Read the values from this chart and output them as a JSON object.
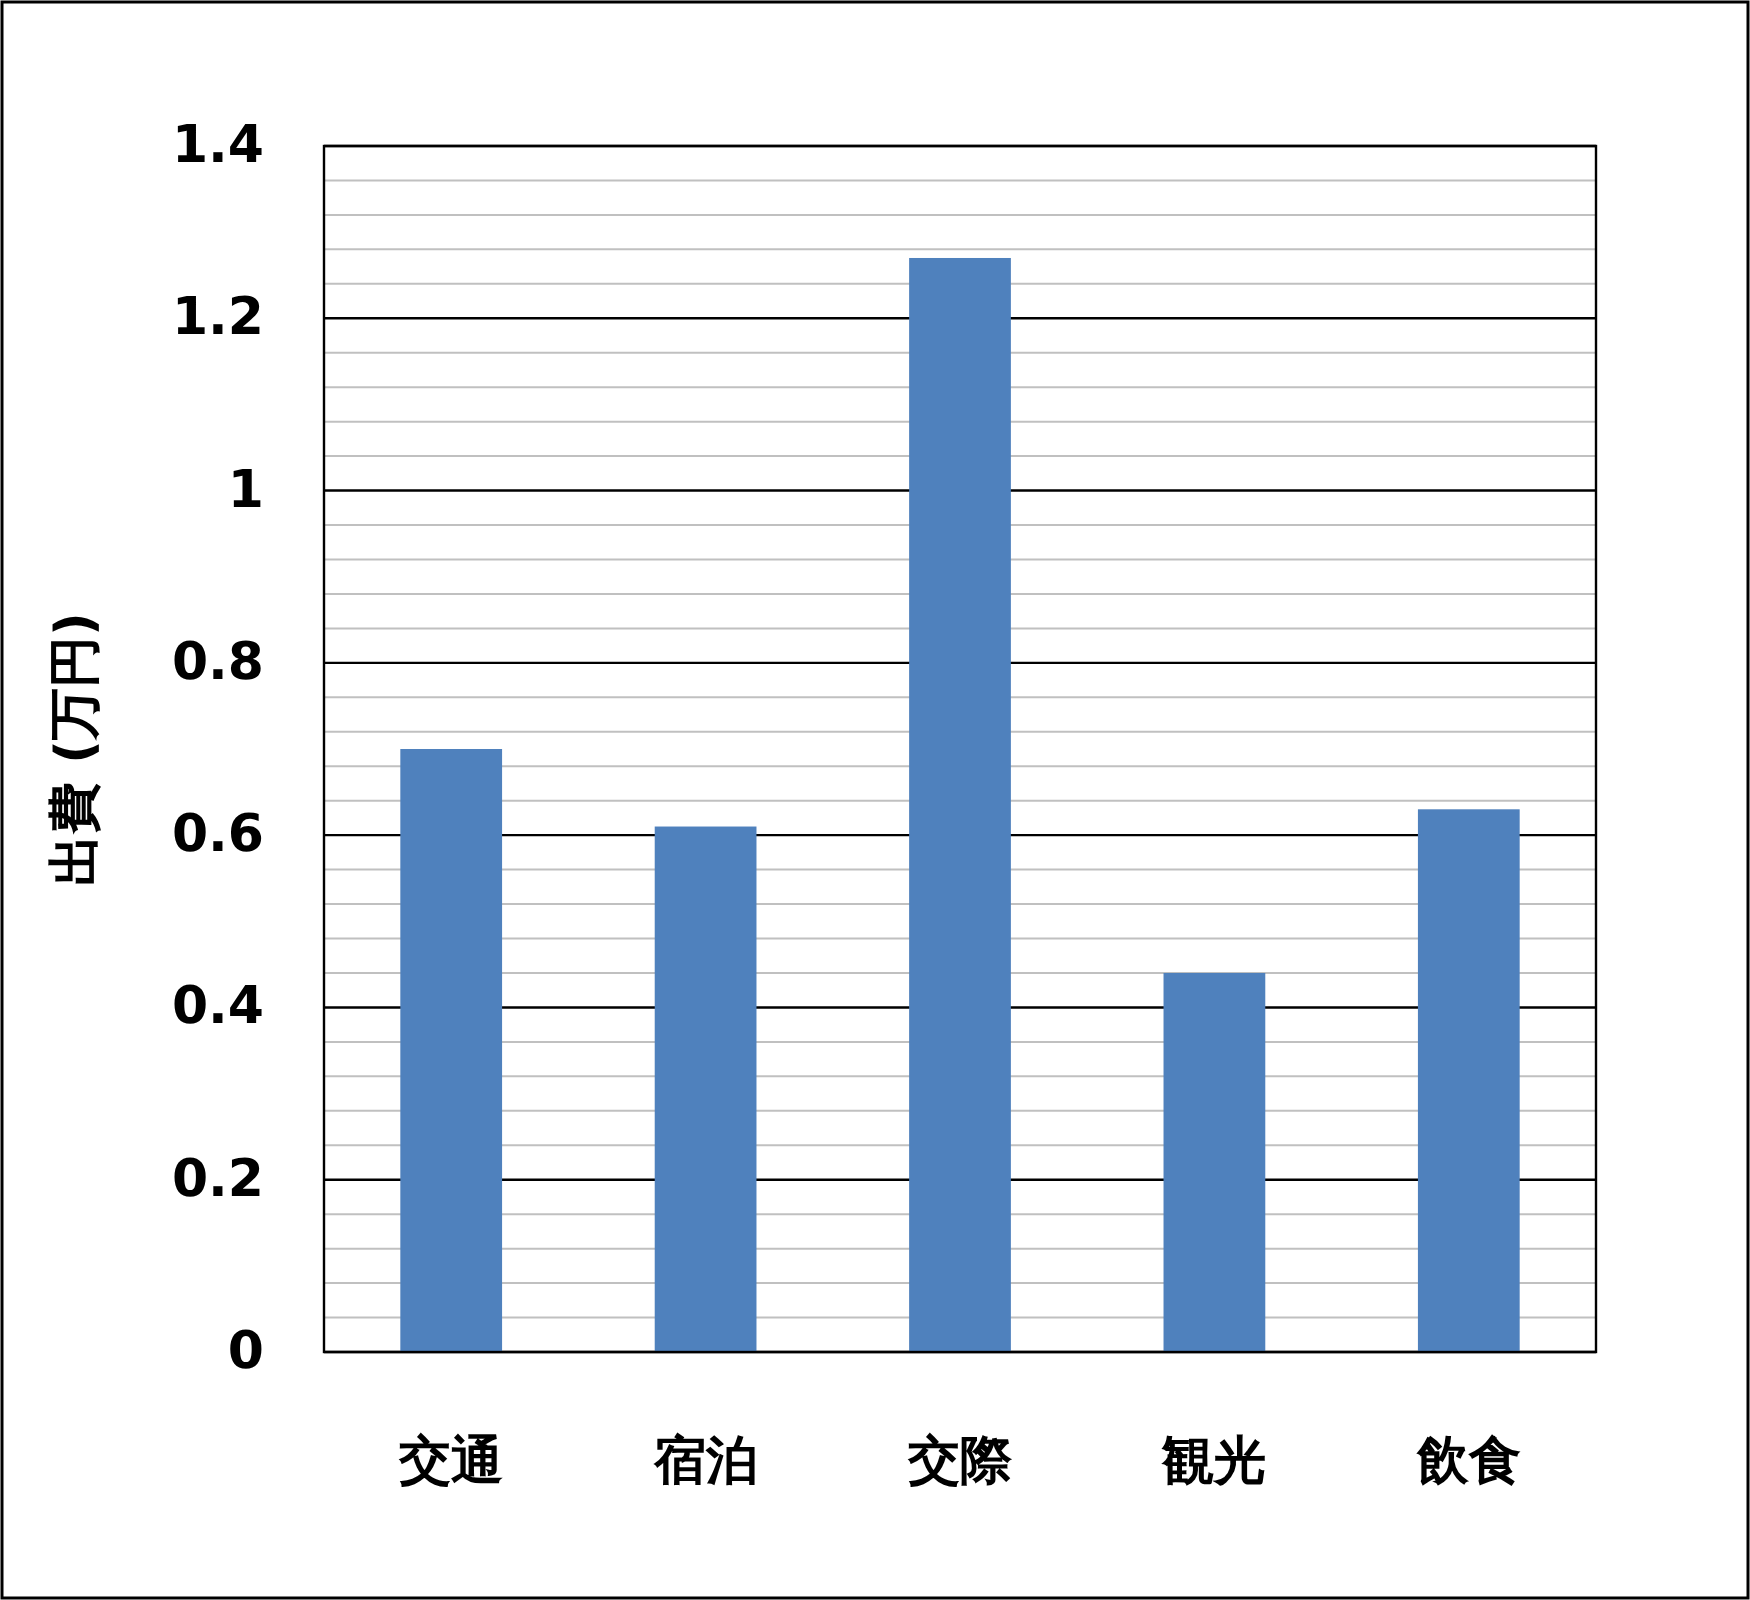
{
  "chart_data": {
    "type": "bar",
    "ylabel": "出費 (万円)",
    "categories": [
      "交通",
      "宿泊",
      "交際",
      "観光",
      "飲食"
    ],
    "values": [
      0.7,
      0.61,
      1.27,
      0.44,
      0.63
    ],
    "color": "#4f81bd",
    "ylim": [
      0,
      1.4
    ],
    "yticks": [
      0,
      {
        "value": 0.04,
        "label": null
      },
      {
        "value": 0.08,
        "label": null
      },
      {
        "value": 0.12,
        "label": null
      },
      {
        "value": 0.16,
        "label": null
      },
      {
        "value": 0.2,
        "label": "0.2"
      },
      {
        "value": 0.24,
        "label": null
      },
      {
        "value": 0.28,
        "label": null
      },
      {
        "value": 0.32,
        "label": null
      },
      {
        "value": 0.36,
        "label": null
      },
      {
        "value": 0.4,
        "label": "0.4"
      },
      {
        "value": 0.44,
        "label": null
      },
      {
        "value": 0.48,
        "label": null
      },
      {
        "value": 0.52,
        "label": null
      },
      {
        "value": 0.56,
        "label": null
      },
      {
        "value": 0.6,
        "label": "0.6"
      },
      {
        "value": 0.64,
        "label": null
      },
      {
        "value": 0.68,
        "label": null
      },
      {
        "value": 0.72,
        "label": null
      },
      {
        "value": 0.76,
        "label": null
      },
      {
        "value": 0.8,
        "label": "0.8"
      },
      {
        "value": 0.84,
        "label": null
      },
      {
        "value": 0.88,
        "label": null
      },
      {
        "value": 0.92,
        "label": null
      },
      {
        "value": 0.96,
        "label": null
      },
      {
        "value": 1,
        "label": "1"
      },
      {
        "value": 1.04,
        "label": null
      },
      {
        "value": 1.08,
        "label": null
      },
      {
        "value": 1.12,
        "label": null
      },
      {
        "value": 1.16,
        "label": null
      },
      {
        "value": 1.2,
        "label": "1.2"
      },
      {
        "value": 1.24,
        "label": null
      },
      {
        "value": 1.28,
        "label": null
      },
      {
        "value": 1.32,
        "label": null
      },
      {
        "value": 1.36,
        "label": null
      },
      {
        "value": 1.4,
        "label": "1.4"
      }
    ],
    "grid": "y"
  }
}
